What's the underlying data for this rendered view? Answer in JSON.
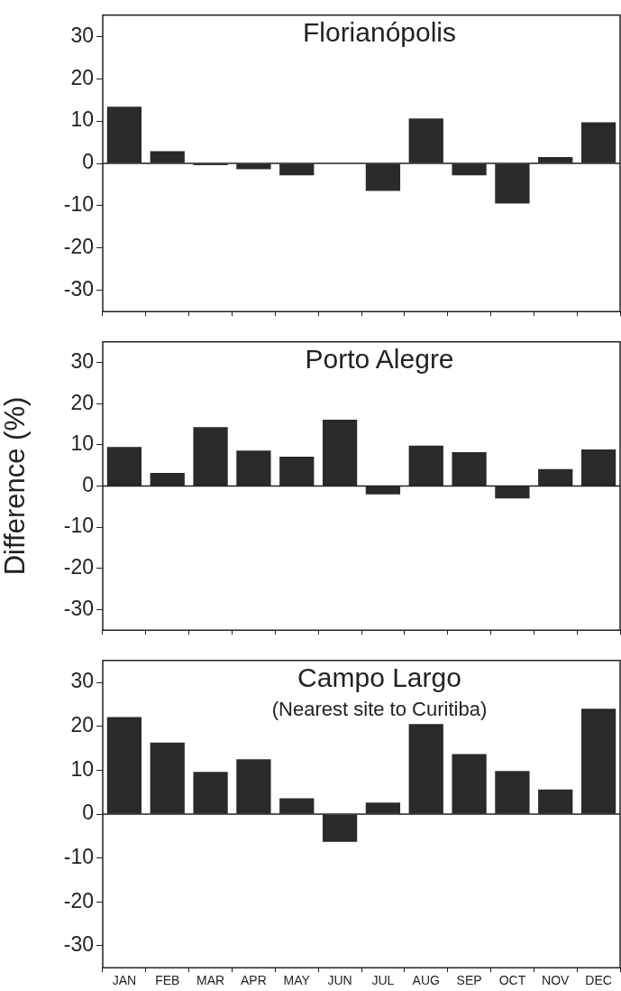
{
  "chart_data": [
    {
      "type": "bar",
      "title": "Florianópolis",
      "categories": [
        null,
        null,
        null,
        null,
        null,
        null,
        null,
        null,
        null,
        null,
        null,
        null
      ],
      "values": [
        13.4,
        2.9,
        -0.4,
        -1.4,
        -2.8,
        0,
        -6.5,
        10.6,
        -2.8,
        -9.5,
        1.5,
        9.7
      ],
      "color": "#2a2a2a",
      "ylim": [
        -35,
        35
      ],
      "yticks": [
        -30,
        -20,
        -10,
        0,
        10,
        20,
        30
      ],
      "legend": false,
      "tick_labels": "y"
    },
    {
      "type": "bar",
      "title": "Porto Alegre",
      "ylabel": "Difference (%)",
      "categories": [
        null,
        null,
        null,
        null,
        null,
        null,
        null,
        null,
        null,
        null,
        null,
        null
      ],
      "values": [
        9.5,
        3.2,
        14.3,
        8.6,
        7.1,
        16.1,
        -2.0,
        9.8,
        8.2,
        -3.0,
        4.1,
        8.9
      ],
      "color": "#2a2a2a",
      "ylim": [
        -35,
        35
      ],
      "yticks": [
        -30,
        -20,
        -10,
        0,
        10,
        20,
        30
      ],
      "legend": false,
      "tick_labels": "y"
    },
    {
      "type": "bar",
      "title": "Campo Largo",
      "subtitle": "(Nearest site to Curitiba)",
      "categories": [
        "JAN",
        "FEB",
        "MAR",
        "APR",
        "MAY",
        "JUN",
        "JUL",
        "AUG",
        "SEP",
        "OCT",
        "NOV",
        "DEC"
      ],
      "values": [
        22.1,
        16.3,
        9.6,
        12.5,
        3.6,
        -6.3,
        2.6,
        20.5,
        13.7,
        9.8,
        5.6,
        24.0
      ],
      "color": "#2a2a2a",
      "ylim": [
        -35,
        35
      ],
      "yticks": [
        -30,
        -20,
        -10,
        0,
        10,
        20,
        30
      ],
      "legend": false
    }
  ]
}
